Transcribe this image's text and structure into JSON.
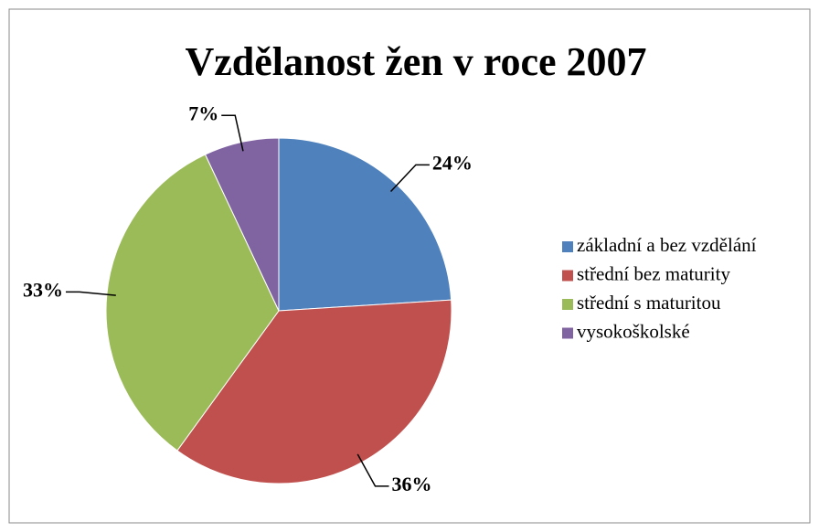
{
  "chart_data": {
    "type": "pie",
    "title": "Vzdělanost žen v roce 2007",
    "categories": [
      "základní a bez vzdělání",
      "střední bez maturity",
      "střední s maturitou",
      "vysokoškolské"
    ],
    "values": [
      24,
      36,
      33,
      7
    ],
    "value_labels": [
      "24%",
      "36%",
      "33%",
      "7%"
    ],
    "colors": [
      "#4f81bd",
      "#c0504d",
      "#9bbb59",
      "#8064a2"
    ],
    "legend": "right"
  }
}
